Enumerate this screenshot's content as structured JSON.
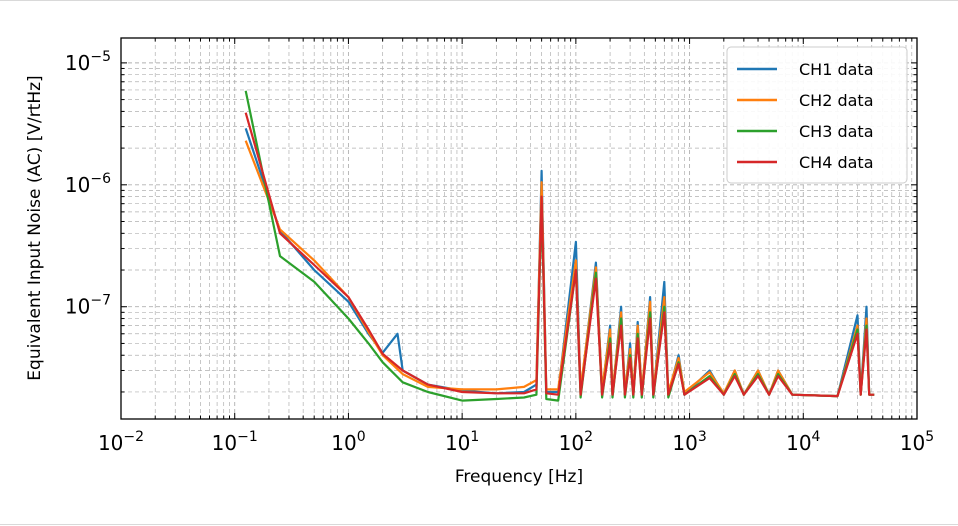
{
  "chart_data": {
    "type": "line",
    "title": "",
    "xlabel": "Frequency [Hz]",
    "ylabel": "Equivalent Input Noise (AC) [V/rtHz]",
    "xscale": "log",
    "yscale": "log",
    "xlim": [
      0.01,
      100000
    ],
    "ylim": [
      1.2e-08,
      1.6e-05
    ],
    "x_ticks": [
      {
        "base": "10",
        "exp": "−2",
        "value": 0.01
      },
      {
        "base": "10",
        "exp": "−1",
        "value": 0.1
      },
      {
        "base": "10",
        "exp": "0",
        "value": 1
      },
      {
        "base": "10",
        "exp": "1",
        "value": 10
      },
      {
        "base": "10",
        "exp": "2",
        "value": 100
      },
      {
        "base": "10",
        "exp": "3",
        "value": 1000
      },
      {
        "base": "10",
        "exp": "4",
        "value": 10000
      },
      {
        "base": "10",
        "exp": "5",
        "value": 100000
      }
    ],
    "y_ticks": [
      {
        "base": "10",
        "exp": "−7",
        "value": 1e-07
      },
      {
        "base": "10",
        "exp": "−6",
        "value": 1e-06
      },
      {
        "base": "10",
        "exp": "−5",
        "value": 1e-05
      }
    ],
    "grid": true,
    "legend_position": "top-right",
    "series": [
      {
        "name": "CH1 data",
        "color": "#1f77b4",
        "points": [
          [
            0.125,
            2.9e-06
          ],
          [
            0.25,
            4.2e-07
          ],
          [
            0.5,
            2e-07
          ],
          [
            1,
            1.1e-07
          ],
          [
            1.5,
            6e-08
          ],
          [
            2,
            4.2e-08
          ],
          [
            2.7,
            6e-08
          ],
          [
            3,
            3e-08
          ],
          [
            5,
            2.3e-08
          ],
          [
            10,
            2.05e-08
          ],
          [
            20,
            1.95e-08
          ],
          [
            35,
            2e-08
          ],
          [
            45,
            2.3e-08
          ],
          [
            50,
            1.3e-06
          ],
          [
            55,
            2e-08
          ],
          [
            70,
            2e-08
          ],
          [
            100,
            3.4e-07
          ],
          [
            110,
            2e-08
          ],
          [
            150,
            2.3e-07
          ],
          [
            170,
            2e-08
          ],
          [
            200,
            7e-08
          ],
          [
            210,
            1.9e-08
          ],
          [
            250,
            1e-07
          ],
          [
            270,
            1.9e-08
          ],
          [
            300,
            5e-08
          ],
          [
            320,
            1.9e-08
          ],
          [
            350,
            7.5e-08
          ],
          [
            380,
            1.9e-08
          ],
          [
            450,
            1.2e-07
          ],
          [
            480,
            1.9e-08
          ],
          [
            600,
            1.6e-07
          ],
          [
            650,
            1.9e-08
          ],
          [
            800,
            4e-08
          ],
          [
            900,
            1.9e-08
          ],
          [
            1500,
            3e-08
          ],
          [
            2000,
            1.9e-08
          ],
          [
            2500,
            3e-08
          ],
          [
            3000,
            1.9e-08
          ],
          [
            4000,
            3e-08
          ],
          [
            5000,
            1.9e-08
          ],
          [
            6000,
            3e-08
          ],
          [
            8000,
            1.9e-08
          ],
          [
            20000,
            1.85e-08
          ],
          [
            30000,
            8.5e-08
          ],
          [
            32000,
            1.9e-08
          ],
          [
            36000,
            1e-07
          ],
          [
            38000,
            1.9e-08
          ],
          [
            42000,
            1.9e-08
          ]
        ]
      },
      {
        "name": "CH2 data",
        "color": "#ff7f0e",
        "points": [
          [
            0.125,
            2.3e-06
          ],
          [
            0.25,
            4.3e-07
          ],
          [
            0.5,
            2.4e-07
          ],
          [
            1,
            1.2e-07
          ],
          [
            1.5,
            6.2e-08
          ],
          [
            2,
            4e-08
          ],
          [
            3,
            2.8e-08
          ],
          [
            5,
            2.2e-08
          ],
          [
            10,
            2.1e-08
          ],
          [
            20,
            2.1e-08
          ],
          [
            35,
            2.2e-08
          ],
          [
            45,
            2.5e-08
          ],
          [
            50,
            1.05e-06
          ],
          [
            55,
            2.1e-08
          ],
          [
            70,
            2.1e-08
          ],
          [
            100,
            2.4e-07
          ],
          [
            110,
            2.1e-08
          ],
          [
            150,
            2.1e-07
          ],
          [
            170,
            2.1e-08
          ],
          [
            200,
            6.5e-08
          ],
          [
            210,
            2e-08
          ],
          [
            250,
            9e-08
          ],
          [
            270,
            2e-08
          ],
          [
            300,
            4.5e-08
          ],
          [
            320,
            2e-08
          ],
          [
            350,
            7e-08
          ],
          [
            380,
            2e-08
          ],
          [
            450,
            1.1e-07
          ],
          [
            480,
            2e-08
          ],
          [
            600,
            1.2e-07
          ],
          [
            650,
            2e-08
          ],
          [
            800,
            3.8e-08
          ],
          [
            900,
            2e-08
          ],
          [
            1500,
            2.9e-08
          ],
          [
            2000,
            1.95e-08
          ],
          [
            2500,
            3e-08
          ],
          [
            3000,
            1.9e-08
          ],
          [
            4000,
            3e-08
          ],
          [
            5000,
            1.9e-08
          ],
          [
            6000,
            3e-08
          ],
          [
            8000,
            1.9e-08
          ],
          [
            20000,
            1.85e-08
          ],
          [
            30000,
            7e-08
          ],
          [
            32000,
            1.9e-08
          ],
          [
            36000,
            8e-08
          ],
          [
            38000,
            1.9e-08
          ],
          [
            42000,
            1.9e-08
          ]
        ]
      },
      {
        "name": "CH3 data",
        "color": "#2ca02c",
        "points": [
          [
            0.125,
            5.9e-06
          ],
          [
            0.25,
            2.6e-07
          ],
          [
            0.5,
            1.6e-07
          ],
          [
            1,
            8e-08
          ],
          [
            1.5,
            5e-08
          ],
          [
            2,
            3.5e-08
          ],
          [
            3,
            2.4e-08
          ],
          [
            5,
            2e-08
          ],
          [
            10,
            1.7e-08
          ],
          [
            20,
            1.75e-08
          ],
          [
            35,
            1.8e-08
          ],
          [
            45,
            1.9e-08
          ],
          [
            50,
            7e-07
          ],
          [
            55,
            1.75e-08
          ],
          [
            70,
            1.7e-08
          ],
          [
            100,
            2e-07
          ],
          [
            110,
            1.8e-08
          ],
          [
            150,
            1.9e-07
          ],
          [
            170,
            1.8e-08
          ],
          [
            200,
            5.5e-08
          ],
          [
            210,
            1.8e-08
          ],
          [
            250,
            8e-08
          ],
          [
            270,
            1.8e-08
          ],
          [
            300,
            4e-08
          ],
          [
            320,
            1.8e-08
          ],
          [
            350,
            6e-08
          ],
          [
            380,
            1.8e-08
          ],
          [
            450,
            9e-08
          ],
          [
            480,
            1.8e-08
          ],
          [
            600,
            1e-07
          ],
          [
            650,
            1.8e-08
          ],
          [
            800,
            3.5e-08
          ],
          [
            900,
            1.9e-08
          ],
          [
            1500,
            2.7e-08
          ],
          [
            2000,
            1.9e-08
          ],
          [
            2500,
            2.8e-08
          ],
          [
            3000,
            1.9e-08
          ],
          [
            4000,
            2.8e-08
          ],
          [
            5000,
            1.9e-08
          ],
          [
            6000,
            2.8e-08
          ],
          [
            8000,
            1.9e-08
          ],
          [
            20000,
            1.85e-08
          ],
          [
            30000,
            6.5e-08
          ],
          [
            32000,
            1.9e-08
          ],
          [
            36000,
            7e-08
          ],
          [
            38000,
            1.9e-08
          ],
          [
            42000,
            1.9e-08
          ]
        ]
      },
      {
        "name": "CH4 data",
        "color": "#d62728",
        "points": [
          [
            0.125,
            3.9e-06
          ],
          [
            0.25,
            4e-07
          ],
          [
            0.5,
            2.2e-07
          ],
          [
            1,
            1.2e-07
          ],
          [
            1.5,
            6.5e-08
          ],
          [
            2,
            4.1e-08
          ],
          [
            3,
            3e-08
          ],
          [
            5,
            2.3e-08
          ],
          [
            10,
            2e-08
          ],
          [
            20,
            1.95e-08
          ],
          [
            35,
            1.95e-08
          ],
          [
            45,
            2.1e-08
          ],
          [
            50,
            8e-07
          ],
          [
            55,
            1.95e-08
          ],
          [
            70,
            1.9e-08
          ],
          [
            100,
            2e-07
          ],
          [
            110,
            1.9e-08
          ],
          [
            150,
            1.7e-07
          ],
          [
            170,
            1.9e-08
          ],
          [
            200,
            5e-08
          ],
          [
            210,
            1.9e-08
          ],
          [
            250,
            7e-08
          ],
          [
            270,
            1.9e-08
          ],
          [
            300,
            3.8e-08
          ],
          [
            320,
            1.9e-08
          ],
          [
            350,
            5.5e-08
          ],
          [
            380,
            1.9e-08
          ],
          [
            450,
            8e-08
          ],
          [
            480,
            1.9e-08
          ],
          [
            600,
            9e-08
          ],
          [
            650,
            1.9e-08
          ],
          [
            800,
            3.4e-08
          ],
          [
            900,
            1.9e-08
          ],
          [
            1500,
            2.6e-08
          ],
          [
            2000,
            1.9e-08
          ],
          [
            2500,
            2.7e-08
          ],
          [
            3000,
            1.9e-08
          ],
          [
            4000,
            2.7e-08
          ],
          [
            5000,
            1.9e-08
          ],
          [
            6000,
            2.7e-08
          ],
          [
            8000,
            1.9e-08
          ],
          [
            20000,
            1.85e-08
          ],
          [
            30000,
            6e-08
          ],
          [
            32000,
            1.9e-08
          ],
          [
            36000,
            6.5e-08
          ],
          [
            38000,
            1.9e-08
          ],
          [
            42000,
            1.9e-08
          ]
        ]
      }
    ]
  }
}
